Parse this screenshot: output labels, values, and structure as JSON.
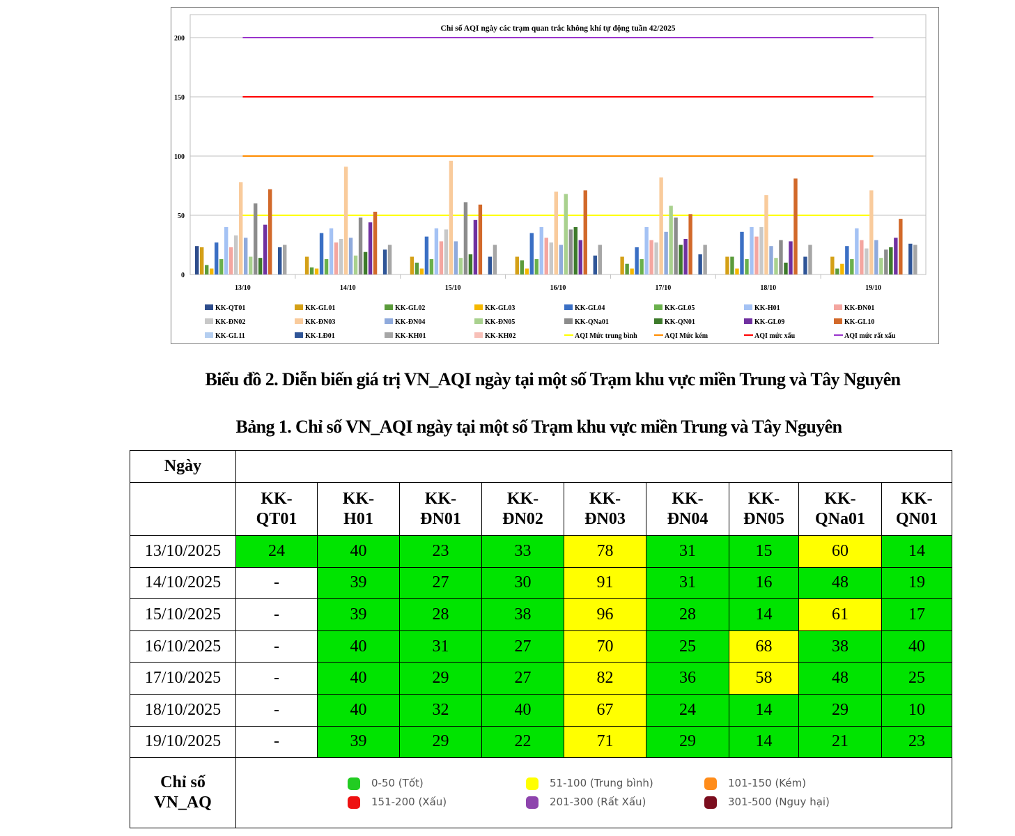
{
  "chart_data": {
    "type": "bar",
    "title": "Chỉ số AQI ngày các trạm quan trắc không khí tự động tuần 42/2025",
    "categories": [
      "13/10",
      "14/10",
      "15/10",
      "16/10",
      "17/10",
      "18/10",
      "19/10"
    ],
    "ylim": [
      0,
      200
    ],
    "yticks": [
      0,
      50,
      100,
      150,
      200
    ],
    "series": [
      {
        "name": "KK-QT01",
        "color": "#2e4d8c",
        "values": [
          24,
          null,
          null,
          null,
          null,
          null,
          null
        ]
      },
      {
        "name": "KK-GL01",
        "color": "#d4a017",
        "values": [
          23,
          15,
          15,
          15,
          15,
          15,
          15
        ]
      },
      {
        "name": "KK-GL02",
        "color": "#5b9b3b",
        "values": [
          8,
          6,
          10,
          12,
          9,
          15,
          5
        ]
      },
      {
        "name": "KK-GL03",
        "color": "#f5b800",
        "values": [
          5,
          5,
          5,
          5,
          5,
          5,
          9
        ]
      },
      {
        "name": "KK-GL04",
        "color": "#3a6fc4",
        "values": [
          27,
          35,
          32,
          35,
          23,
          36,
          24
        ]
      },
      {
        "name": "KK-GL05",
        "color": "#6ab04c",
        "values": [
          13,
          13,
          13,
          13,
          13,
          13,
          13
        ]
      },
      {
        "name": "KK-H01",
        "color": "#a4c2f4",
        "values": [
          40,
          39,
          39,
          40,
          40,
          40,
          39
        ]
      },
      {
        "name": "KK-ĐN01",
        "color": "#f4a6a0",
        "values": [
          23,
          27,
          28,
          31,
          29,
          32,
          29
        ]
      },
      {
        "name": "KK-ĐN02",
        "color": "#c8c8c8",
        "values": [
          33,
          30,
          38,
          27,
          27,
          40,
          22
        ]
      },
      {
        "name": "KK-ĐN03",
        "color": "#f9cb9c",
        "values": [
          78,
          91,
          96,
          70,
          82,
          67,
          71
        ]
      },
      {
        "name": "KK-ĐN04",
        "color": "#8faadc",
        "values": [
          31,
          31,
          28,
          25,
          36,
          24,
          29
        ]
      },
      {
        "name": "KK-ĐN05",
        "color": "#a9d18e",
        "values": [
          15,
          16,
          14,
          68,
          58,
          14,
          14
        ]
      },
      {
        "name": "KK-QNa01",
        "color": "#8c8c8c",
        "values": [
          60,
          48,
          61,
          38,
          48,
          29,
          21
        ]
      },
      {
        "name": "KK-QN01",
        "color": "#3d7a2a",
        "values": [
          14,
          19,
          17,
          40,
          25,
          10,
          23
        ]
      },
      {
        "name": "KK-GL09",
        "color": "#7030a0",
        "values": [
          42,
          44,
          46,
          29,
          30,
          28,
          31
        ]
      },
      {
        "name": "KK-GL10",
        "color": "#d2692a",
        "values": [
          72,
          53,
          59,
          71,
          51,
          81,
          47
        ]
      },
      {
        "name": "KK-GL11",
        "color": "#b4cef0",
        "values": [
          null,
          null,
          null,
          null,
          null,
          null,
          null
        ]
      },
      {
        "name": "KK-LĐ01",
        "color": "#2f5597",
        "values": [
          23,
          21,
          15,
          16,
          17,
          15,
          26
        ]
      },
      {
        "name": "KK-KH01",
        "color": "#a6a6a6",
        "values": [
          25,
          25,
          25,
          25,
          25,
          25,
          25
        ]
      },
      {
        "name": "KK-KH02",
        "color": "#f8c0b8",
        "values": [
          null,
          null,
          null,
          null,
          null,
          null,
          null
        ]
      }
    ],
    "thresholds": [
      {
        "name": "AQI Mức trung bình",
        "value": 50,
        "color": "#ffff00"
      },
      {
        "name": "AQI Mức kém",
        "value": 100,
        "color": "#ff8c00"
      },
      {
        "name": "AQI mức xấu",
        "value": 150,
        "color": "#ff0000"
      },
      {
        "name": "AQI mức rất xấu",
        "value": 200,
        "color": "#9933cc"
      }
    ]
  },
  "captions": {
    "chart": "Biểu đồ 2. Diễn biến giá trị VN_AQI ngày tại một số Trạm khu vực miền Trung và Tây Nguyên",
    "table": "Bảng 1. Chỉ số VN_AQI ngày tại một số Trạm khu vực miền Trung và Tây Nguyên"
  },
  "table": {
    "date_header": "Ngày",
    "stations": [
      "KK-\nQT01",
      "KK-\nH01",
      "KK-\nĐN01",
      "KK-\nĐN02",
      "KK-\nĐN03",
      "KK-\nĐN04",
      "KK-\nĐN05",
      "KK-\nQNa01",
      "KK-\nQN01"
    ],
    "rows": [
      {
        "date": "13/10/2025",
        "values": [
          "24",
          "40",
          "23",
          "33",
          "78",
          "31",
          "15",
          "60",
          "14"
        ]
      },
      {
        "date": "14/10/2025",
        "values": [
          "-",
          "39",
          "27",
          "30",
          "91",
          "31",
          "16",
          "48",
          "19"
        ]
      },
      {
        "date": "15/10/2025",
        "values": [
          "-",
          "39",
          "28",
          "38",
          "96",
          "28",
          "14",
          "61",
          "17"
        ]
      },
      {
        "date": "16/10/2025",
        "values": [
          "-",
          "40",
          "31",
          "27",
          "70",
          "25",
          "68",
          "38",
          "40"
        ]
      },
      {
        "date": "17/10/2025",
        "values": [
          "-",
          "40",
          "29",
          "27",
          "82",
          "36",
          "58",
          "48",
          "25"
        ]
      },
      {
        "date": "18/10/2025",
        "values": [
          "-",
          "40",
          "32",
          "40",
          "67",
          "24",
          "14",
          "29",
          "10"
        ]
      },
      {
        "date": "19/10/2025",
        "values": [
          "-",
          "39",
          "29",
          "22",
          "71",
          "29",
          "14",
          "21",
          "23"
        ]
      }
    ],
    "index_label": "Chỉ số\nVN_AQ",
    "legend": [
      {
        "label": "0-50 (Tốt)",
        "color": "#22cc22"
      },
      {
        "label": "51-100 (Trung bình)",
        "color": "#ffff00"
      },
      {
        "label": "101-150 (Kém)",
        "color": "#ff8c1a"
      },
      {
        "label": "151-200 (Xấu)",
        "color": "#ee1111"
      },
      {
        "label": "201-300 (Rất Xấu)",
        "color": "#8e44ad"
      },
      {
        "label": "301-500 (Nguy hại)",
        "color": "#7b0d1e"
      }
    ]
  }
}
